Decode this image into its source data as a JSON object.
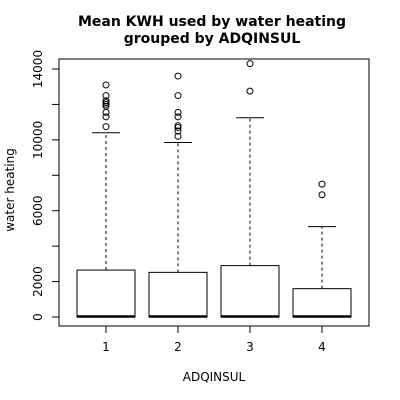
{
  "chart_data": {
    "type": "boxplot",
    "title_lines": [
      "Mean KWH used by water heating",
      "grouped by ADQINSUL"
    ],
    "xlabel": "ADQINSUL",
    "ylabel": "water heating",
    "categories": [
      "1",
      "2",
      "3",
      "4"
    ],
    "ylim": [
      -500,
      14800
    ],
    "yticks": [
      0,
      2000,
      6000,
      10000,
      14000
    ],
    "yticks_minor": [
      4000,
      8000,
      12000
    ],
    "boxes": [
      {
        "category": "1",
        "whisker_low": 0,
        "q1": 0,
        "median": 30,
        "q3": 2650,
        "whisker_high": 10400,
        "outliers": [
          10750,
          11300,
          11550,
          11900,
          12000,
          12100,
          12200,
          12500,
          13100
        ]
      },
      {
        "category": "2",
        "whisker_low": 0,
        "q1": 0,
        "median": 30,
        "q3": 2520,
        "whisker_high": 9850,
        "outliers": [
          10200,
          10500,
          10700,
          10800,
          11300,
          11550,
          12500,
          13600
        ]
      },
      {
        "category": "3",
        "whisker_low": 0,
        "q1": 0,
        "median": 30,
        "q3": 2900,
        "whisker_high": 11250,
        "outliers": [
          12750,
          14300
        ]
      },
      {
        "category": "4",
        "whisker_low": 0,
        "q1": 0,
        "median": 30,
        "q3": 1600,
        "whisker_high": 5100,
        "outliers": [
          6900,
          7500
        ]
      }
    ]
  }
}
